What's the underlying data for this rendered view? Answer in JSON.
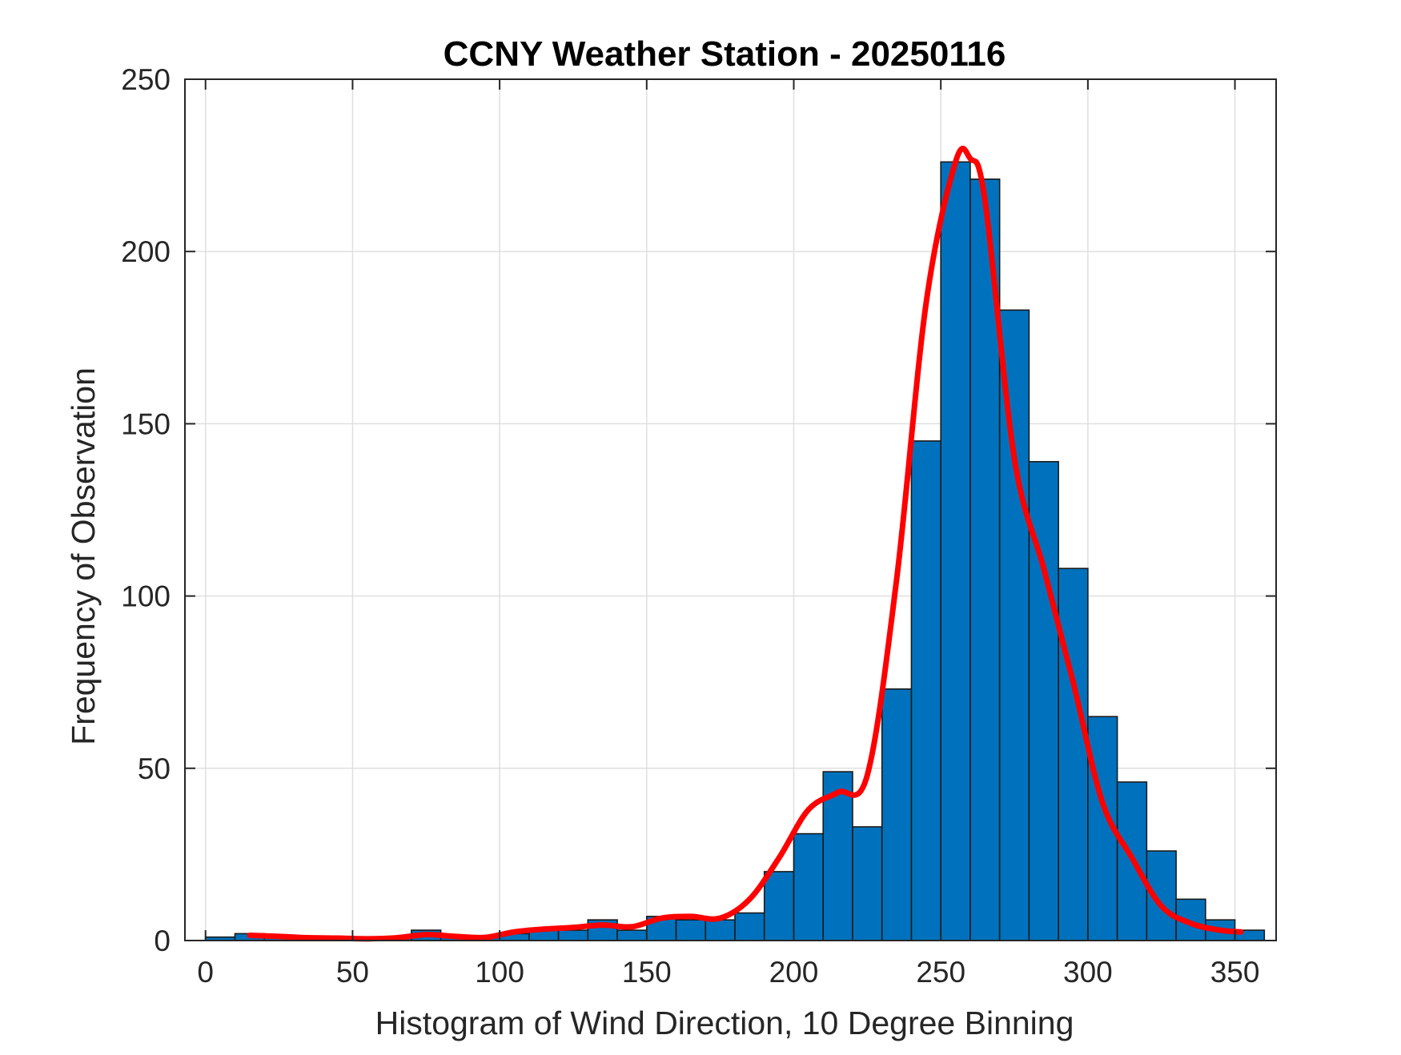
{
  "chart_data": {
    "type": "bar",
    "title": "CCNY Weather Station - 20250116",
    "xlabel": "Histogram of Wind Direction, 10 Degree Binning",
    "ylabel": "Frequency of Observation",
    "xlim": [
      -7,
      364
    ],
    "ylim": [
      0,
      250
    ],
    "grid": true,
    "legend": "none",
    "bin_width": 10,
    "bin_edges": [
      0,
      10,
      20,
      30,
      40,
      50,
      60,
      70,
      80,
      90,
      100,
      110,
      120,
      130,
      140,
      150,
      160,
      170,
      180,
      190,
      200,
      210,
      220,
      230,
      240,
      250,
      260,
      270,
      280,
      290,
      300,
      310,
      320,
      330,
      340,
      350,
      360
    ],
    "values": [
      1,
      2,
      1,
      1,
      1,
      1,
      1,
      3,
      1,
      1,
      2,
      3,
      3,
      6,
      3,
      7,
      6,
      6,
      8,
      20,
      31,
      49,
      33,
      73,
      145,
      226,
      221,
      183,
      139,
      108,
      65,
      46,
      26,
      12,
      6,
      3
    ],
    "x_ticks": [
      "0",
      "50",
      "100",
      "150",
      "200",
      "250",
      "300",
      "350"
    ],
    "x_tick_values": [
      0,
      50,
      100,
      150,
      200,
      250,
      300,
      350
    ],
    "y_ticks": [
      "0",
      "50",
      "100",
      "150",
      "200",
      "250"
    ],
    "y_tick_values": [
      0,
      50,
      100,
      150,
      200,
      250
    ],
    "bar_color": "#0072BD",
    "fit_curve": {
      "color": "#FF0000",
      "x": [
        15,
        25,
        35,
        45,
        55,
        65,
        75,
        85,
        95,
        105,
        115,
        125,
        135,
        145,
        155,
        165,
        175,
        185,
        195,
        205,
        215,
        225,
        235,
        245,
        255,
        260,
        265,
        275,
        285,
        295,
        305,
        315,
        325,
        335,
        345,
        352
      ],
      "y": [
        1.5,
        1.2,
        0.8,
        0.7,
        0.5,
        0.8,
        1.7,
        1.2,
        0.9,
        2.5,
        3.3,
        3.8,
        4.5,
        4.0,
        6.5,
        7.0,
        6.5,
        12,
        24,
        38,
        43,
        48,
        105,
        185,
        226,
        227,
        215,
        140,
        108,
        75,
        40,
        24,
        10,
        5,
        3,
        2.5
      ]
    }
  }
}
